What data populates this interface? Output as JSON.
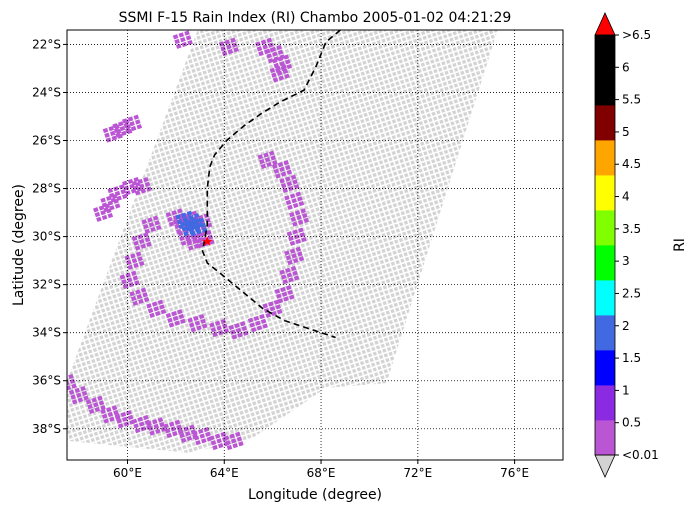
{
  "chart_data": {
    "type": "heatmap",
    "title": "SSMI F-15 Rain Index (RI) Chambo 2005-01-02 04:21:29",
    "xlabel": "Longitude (degree)",
    "ylabel": "Latitude (degree)",
    "xlim": [
      57.5,
      78.0
    ],
    "ylim": [
      -39.3,
      -21.4
    ],
    "grid": "dotted",
    "x_ticks": [
      {
        "value": 60,
        "label": "60°E"
      },
      {
        "value": 64,
        "label": "64°E"
      },
      {
        "value": 68,
        "label": "68°E"
      },
      {
        "value": 72,
        "label": "72°E"
      },
      {
        "value": 76,
        "label": "76°E"
      }
    ],
    "y_ticks": [
      {
        "value": -22,
        "label": "22°S"
      },
      {
        "value": -24,
        "label": "24°S"
      },
      {
        "value": -26,
        "label": "26°S"
      },
      {
        "value": -28,
        "label": "28°S"
      },
      {
        "value": -30,
        "label": "30°S"
      },
      {
        "value": -32,
        "label": "32°S"
      },
      {
        "value": -34,
        "label": "34°S"
      },
      {
        "value": -36,
        "label": "36°S"
      },
      {
        "value": -38,
        "label": "38°S"
      }
    ],
    "swath_polygon": [
      [
        62.9,
        -21.4
      ],
      [
        75.3,
        -21.4
      ],
      [
        70.7,
        -36.1
      ],
      [
        68.2,
        -36.3
      ],
      [
        65.0,
        -38.5
      ],
      [
        62.5,
        -39.0
      ],
      [
        57.5,
        -38.5
      ],
      [
        57.5,
        -36.0
      ]
    ],
    "swath_color": "#d3d3d3",
    "storm_track": [
      [
        68.8,
        -21.4
      ],
      [
        68.2,
        -21.9
      ],
      [
        67.8,
        -22.9
      ],
      [
        67.3,
        -23.9
      ],
      [
        66.3,
        -24.4
      ],
      [
        65.5,
        -24.9
      ],
      [
        64.8,
        -25.4
      ],
      [
        64.1,
        -26.0
      ],
      [
        63.6,
        -26.6
      ],
      [
        63.4,
        -27.1
      ],
      [
        63.3,
        -28.0
      ],
      [
        63.3,
        -28.9
      ],
      [
        63.3,
        -29.5
      ],
      [
        63.2,
        -30.1
      ],
      [
        63.1,
        -30.6
      ],
      [
        63.3,
        -31.1
      ],
      [
        63.8,
        -31.5
      ],
      [
        64.4,
        -32.0
      ],
      [
        65.0,
        -32.5
      ],
      [
        65.6,
        -33.0
      ],
      [
        66.5,
        -33.5
      ],
      [
        67.7,
        -33.9
      ],
      [
        68.6,
        -34.2
      ]
    ],
    "center": [
      63.3,
      -30.2
    ],
    "rain_clusters": [
      {
        "name": "northwest-edge",
        "level": 0,
        "points": [
          [
            59.4,
            -25.7
          ],
          [
            59.8,
            -25.5
          ],
          [
            60.2,
            -25.3
          ],
          [
            59.0,
            -29.0
          ],
          [
            59.3,
            -28.6
          ],
          [
            59.6,
            -28.2
          ],
          [
            60.2,
            -27.9
          ],
          [
            60.6,
            -27.9
          ]
        ]
      },
      {
        "name": "north-patch",
        "level": 0,
        "points": [
          [
            62.3,
            -21.8
          ],
          [
            64.2,
            -22.1
          ],
          [
            65.7,
            -22.1
          ],
          [
            66.1,
            -22.4
          ],
          [
            66.4,
            -22.8
          ],
          [
            66.3,
            -23.2
          ]
        ]
      },
      {
        "name": "storm-core",
        "level": 1,
        "points": [
          [
            62.0,
            -29.2
          ],
          [
            62.3,
            -29.5
          ],
          [
            62.6,
            -29.3
          ],
          [
            62.9,
            -29.7
          ],
          [
            63.1,
            -29.4
          ],
          [
            62.5,
            -30.0
          ],
          [
            63.2,
            -30.1
          ],
          [
            62.8,
            -30.2
          ]
        ]
      },
      {
        "name": "storm-eye",
        "level": 4,
        "points": [
          [
            62.4,
            -29.3
          ],
          [
            62.7,
            -29.4
          ],
          [
            62.9,
            -29.6
          ],
          [
            62.6,
            -29.6
          ]
        ]
      },
      {
        "name": "storm-band",
        "level": 0,
        "points": [
          [
            61.0,
            -29.5
          ],
          [
            60.6,
            -30.2
          ],
          [
            60.3,
            -31.0
          ],
          [
            60.1,
            -31.8
          ],
          [
            60.5,
            -32.5
          ],
          [
            61.2,
            -33.0
          ],
          [
            62.0,
            -33.4
          ],
          [
            62.9,
            -33.6
          ],
          [
            63.8,
            -33.8
          ],
          [
            64.6,
            -33.9
          ],
          [
            65.4,
            -33.6
          ],
          [
            66.0,
            -33.0
          ],
          [
            66.5,
            -32.4
          ],
          [
            66.7,
            -31.6
          ],
          [
            66.9,
            -30.8
          ],
          [
            67.0,
            -30.0
          ],
          [
            67.1,
            -29.2
          ],
          [
            66.9,
            -28.5
          ],
          [
            66.7,
            -27.8
          ],
          [
            66.4,
            -27.2
          ],
          [
            65.8,
            -26.8
          ]
        ]
      },
      {
        "name": "southwest-band",
        "level": 1,
        "points": [
          [
            57.5,
            -36.1
          ],
          [
            58.0,
            -36.6
          ],
          [
            58.7,
            -37.0
          ],
          [
            59.3,
            -37.4
          ],
          [
            59.9,
            -37.6
          ],
          [
            60.6,
            -37.8
          ],
          [
            61.2,
            -37.9
          ],
          [
            61.9,
            -38.0
          ],
          [
            62.5,
            -38.2
          ],
          [
            63.1,
            -38.3
          ],
          [
            63.8,
            -38.5
          ],
          [
            64.4,
            -38.5
          ]
        ]
      }
    ],
    "colorbar": {
      "label": "RI",
      "levels": [
        {
          "label": "<0.01",
          "color": "#d3d3d3"
        },
        {
          "label": "0.5",
          "color": "#ba55d3"
        },
        {
          "label": "1",
          "color": "#8a2be2"
        },
        {
          "label": "1.5",
          "color": "#0000ff"
        },
        {
          "label": "2",
          "color": "#4169e1"
        },
        {
          "label": "2.5",
          "color": "#00ffff"
        },
        {
          "label": "3",
          "color": "#00ff00"
        },
        {
          "label": "3.5",
          "color": "#7fff00"
        },
        {
          "label": "4",
          "color": "#ffff00"
        },
        {
          "label": "4.5",
          "color": "#ffa500"
        },
        {
          "label": "5",
          "color": "#800000"
        },
        {
          "label": "5.5",
          "color": "#000000"
        },
        {
          "label": "6",
          "color": "#000000"
        },
        {
          "label": ">6.5",
          "color": "#ff0000"
        }
      ],
      "bands": [
        {
          "color": "#ba55d3"
        },
        {
          "color": "#8a2be2"
        },
        {
          "color": "#0000ff"
        },
        {
          "color": "#4169e1"
        },
        {
          "color": "#00ffff"
        },
        {
          "color": "#00ff00"
        },
        {
          "color": "#7fff00"
        },
        {
          "color": "#ffff00"
        },
        {
          "color": "#ffa500"
        },
        {
          "color": "#800000"
        },
        {
          "color": "#000000"
        },
        {
          "color": "#000000"
        }
      ],
      "under_color": "#d3d3d3",
      "over_color": "#ff0000"
    }
  }
}
